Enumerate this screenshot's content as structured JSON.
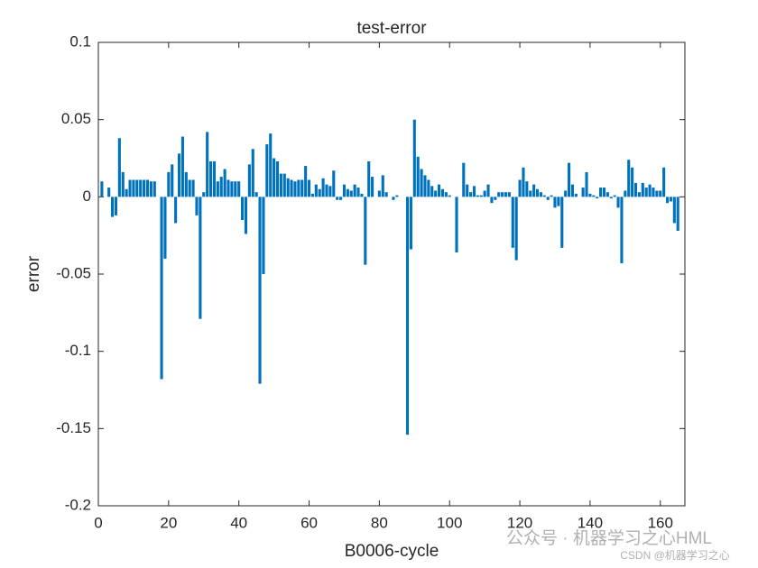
{
  "chart_data": {
    "type": "bar",
    "title": "test-error",
    "xlabel": "B0006-cycle",
    "ylabel": "error",
    "color": "#0072bd",
    "watermark": [
      "公众号 · 机器学习之心HML",
      "CSDN @机器学习之心"
    ],
    "x": [
      1,
      2,
      3,
      4,
      5,
      6,
      7,
      8,
      9,
      10,
      11,
      12,
      13,
      14,
      15,
      16,
      17,
      18,
      19,
      20,
      21,
      22,
      23,
      24,
      25,
      26,
      27,
      28,
      29,
      30,
      31,
      32,
      33,
      34,
      35,
      36,
      37,
      38,
      39,
      40,
      41,
      42,
      43,
      44,
      45,
      46,
      47,
      48,
      49,
      50,
      51,
      52,
      53,
      54,
      55,
      56,
      57,
      58,
      59,
      60,
      61,
      62,
      63,
      64,
      65,
      66,
      67,
      68,
      69,
      70,
      71,
      72,
      73,
      74,
      75,
      76,
      77,
      78,
      79,
      80,
      81,
      82,
      83,
      84,
      85,
      86,
      87,
      88,
      89,
      90,
      91,
      92,
      93,
      94,
      95,
      96,
      97,
      98,
      99,
      100,
      101,
      102,
      103,
      104,
      105,
      106,
      107,
      108,
      109,
      110,
      111,
      112,
      113,
      114,
      115,
      116,
      117,
      118,
      119,
      120,
      121,
      122,
      123,
      124,
      125,
      126,
      127,
      128,
      129,
      130,
      131,
      132,
      133,
      134,
      135,
      136,
      137,
      138,
      139,
      140,
      141,
      142,
      143,
      144,
      145,
      146,
      147,
      148,
      149,
      150,
      151,
      152,
      153,
      154,
      155,
      156,
      157,
      158,
      159,
      160,
      161,
      162,
      163,
      164,
      165
    ],
    "values": [
      0.01,
      0,
      0.006,
      -0.013,
      -0.012,
      0.038,
      0.016,
      0.005,
      0.011,
      0.011,
      0.011,
      0.011,
      0.011,
      0.011,
      0.01,
      0.01,
      0,
      -0.118,
      -0.04,
      0.016,
      0.021,
      -0.017,
      0.028,
      0.039,
      0.016,
      0.011,
      0.011,
      -0.012,
      -0.079,
      0.003,
      0.042,
      0.023,
      0.023,
      0.01,
      0.013,
      0.018,
      0.011,
      0.01,
      0.01,
      0.01,
      -0.015,
      -0.024,
      0.021,
      0.031,
      0.003,
      -0.121,
      -0.05,
      0.034,
      0.041,
      0.025,
      0.023,
      0.015,
      0.015,
      0.012,
      0.011,
      0.01,
      0.011,
      0.011,
      0.02,
      0.011,
      0.002,
      0.008,
      0.005,
      0.012,
      0.008,
      0.007,
      0.017,
      -0.002,
      -0.002,
      0.008,
      0.005,
      0.004,
      0.008,
      0.006,
      0.002,
      -0.044,
      0.023,
      0.013,
      0,
      0.004,
      0.014,
      0.003,
      0,
      -0.002,
      0.001,
      0,
      0,
      -0.154,
      -0.034,
      0.05,
      0.026,
      0.018,
      0.014,
      0.011,
      0.007,
      0.004,
      0.008,
      0.005,
      0.003,
      0.001,
      0,
      -0.036,
      0,
      0.022,
      0.008,
      0.003,
      0.007,
      0.001,
      0.001,
      0.004,
      0.008,
      -0.004,
      -0.002,
      0.003,
      0.003,
      0.003,
      0.003,
      -0.033,
      -0.041,
      0.011,
      0.019,
      0.01,
      0.004,
      0.008,
      0.005,
      0.003,
      0.001,
      -0.002,
      0.001,
      -0.007,
      -0.006,
      -0.033,
      0.004,
      0.022,
      0.008,
      0.002,
      0,
      0.006,
      0.016,
      0.002,
      0.001,
      -0.001,
      0.006,
      0.006,
      0.003,
      -0.001,
      0.001,
      -0.007,
      -0.043,
      0.004,
      0.024,
      0.019,
      0.009,
      0.003,
      0.009,
      0.006,
      0.008,
      0.006,
      0.004,
      0.004,
      0.019,
      -0.004,
      -0.003,
      -0.017,
      -0.022
    ],
    "xlim": [
      0,
      167
    ],
    "xticks": [
      0,
      20,
      40,
      60,
      80,
      100,
      120,
      140,
      160
    ],
    "ylim": [
      -0.2,
      0.1
    ],
    "yticks": [
      0.1,
      0.05,
      0,
      -0.05,
      -0.1,
      -0.15,
      -0.2
    ]
  }
}
